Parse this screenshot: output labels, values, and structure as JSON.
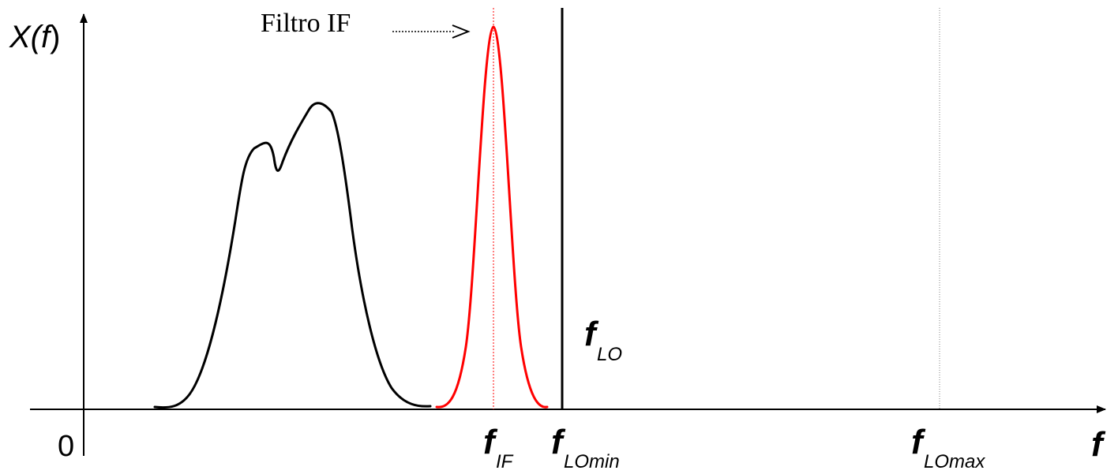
{
  "y_axis_label": {
    "main": "X(",
    "var": "f",
    "close": ")"
  },
  "x_axis_label": "f",
  "origin_label": "0",
  "filter_label": "Filtro IF",
  "f_symbol": "f",
  "subscripts": {
    "if": "IF",
    "lo": "LO",
    "lo_min": "LOmin",
    "lo_max": "LOmax"
  },
  "colors": {
    "axis": "#000000",
    "signal": "#000000",
    "filter": "#ff0000",
    "guide": "#808080"
  }
}
